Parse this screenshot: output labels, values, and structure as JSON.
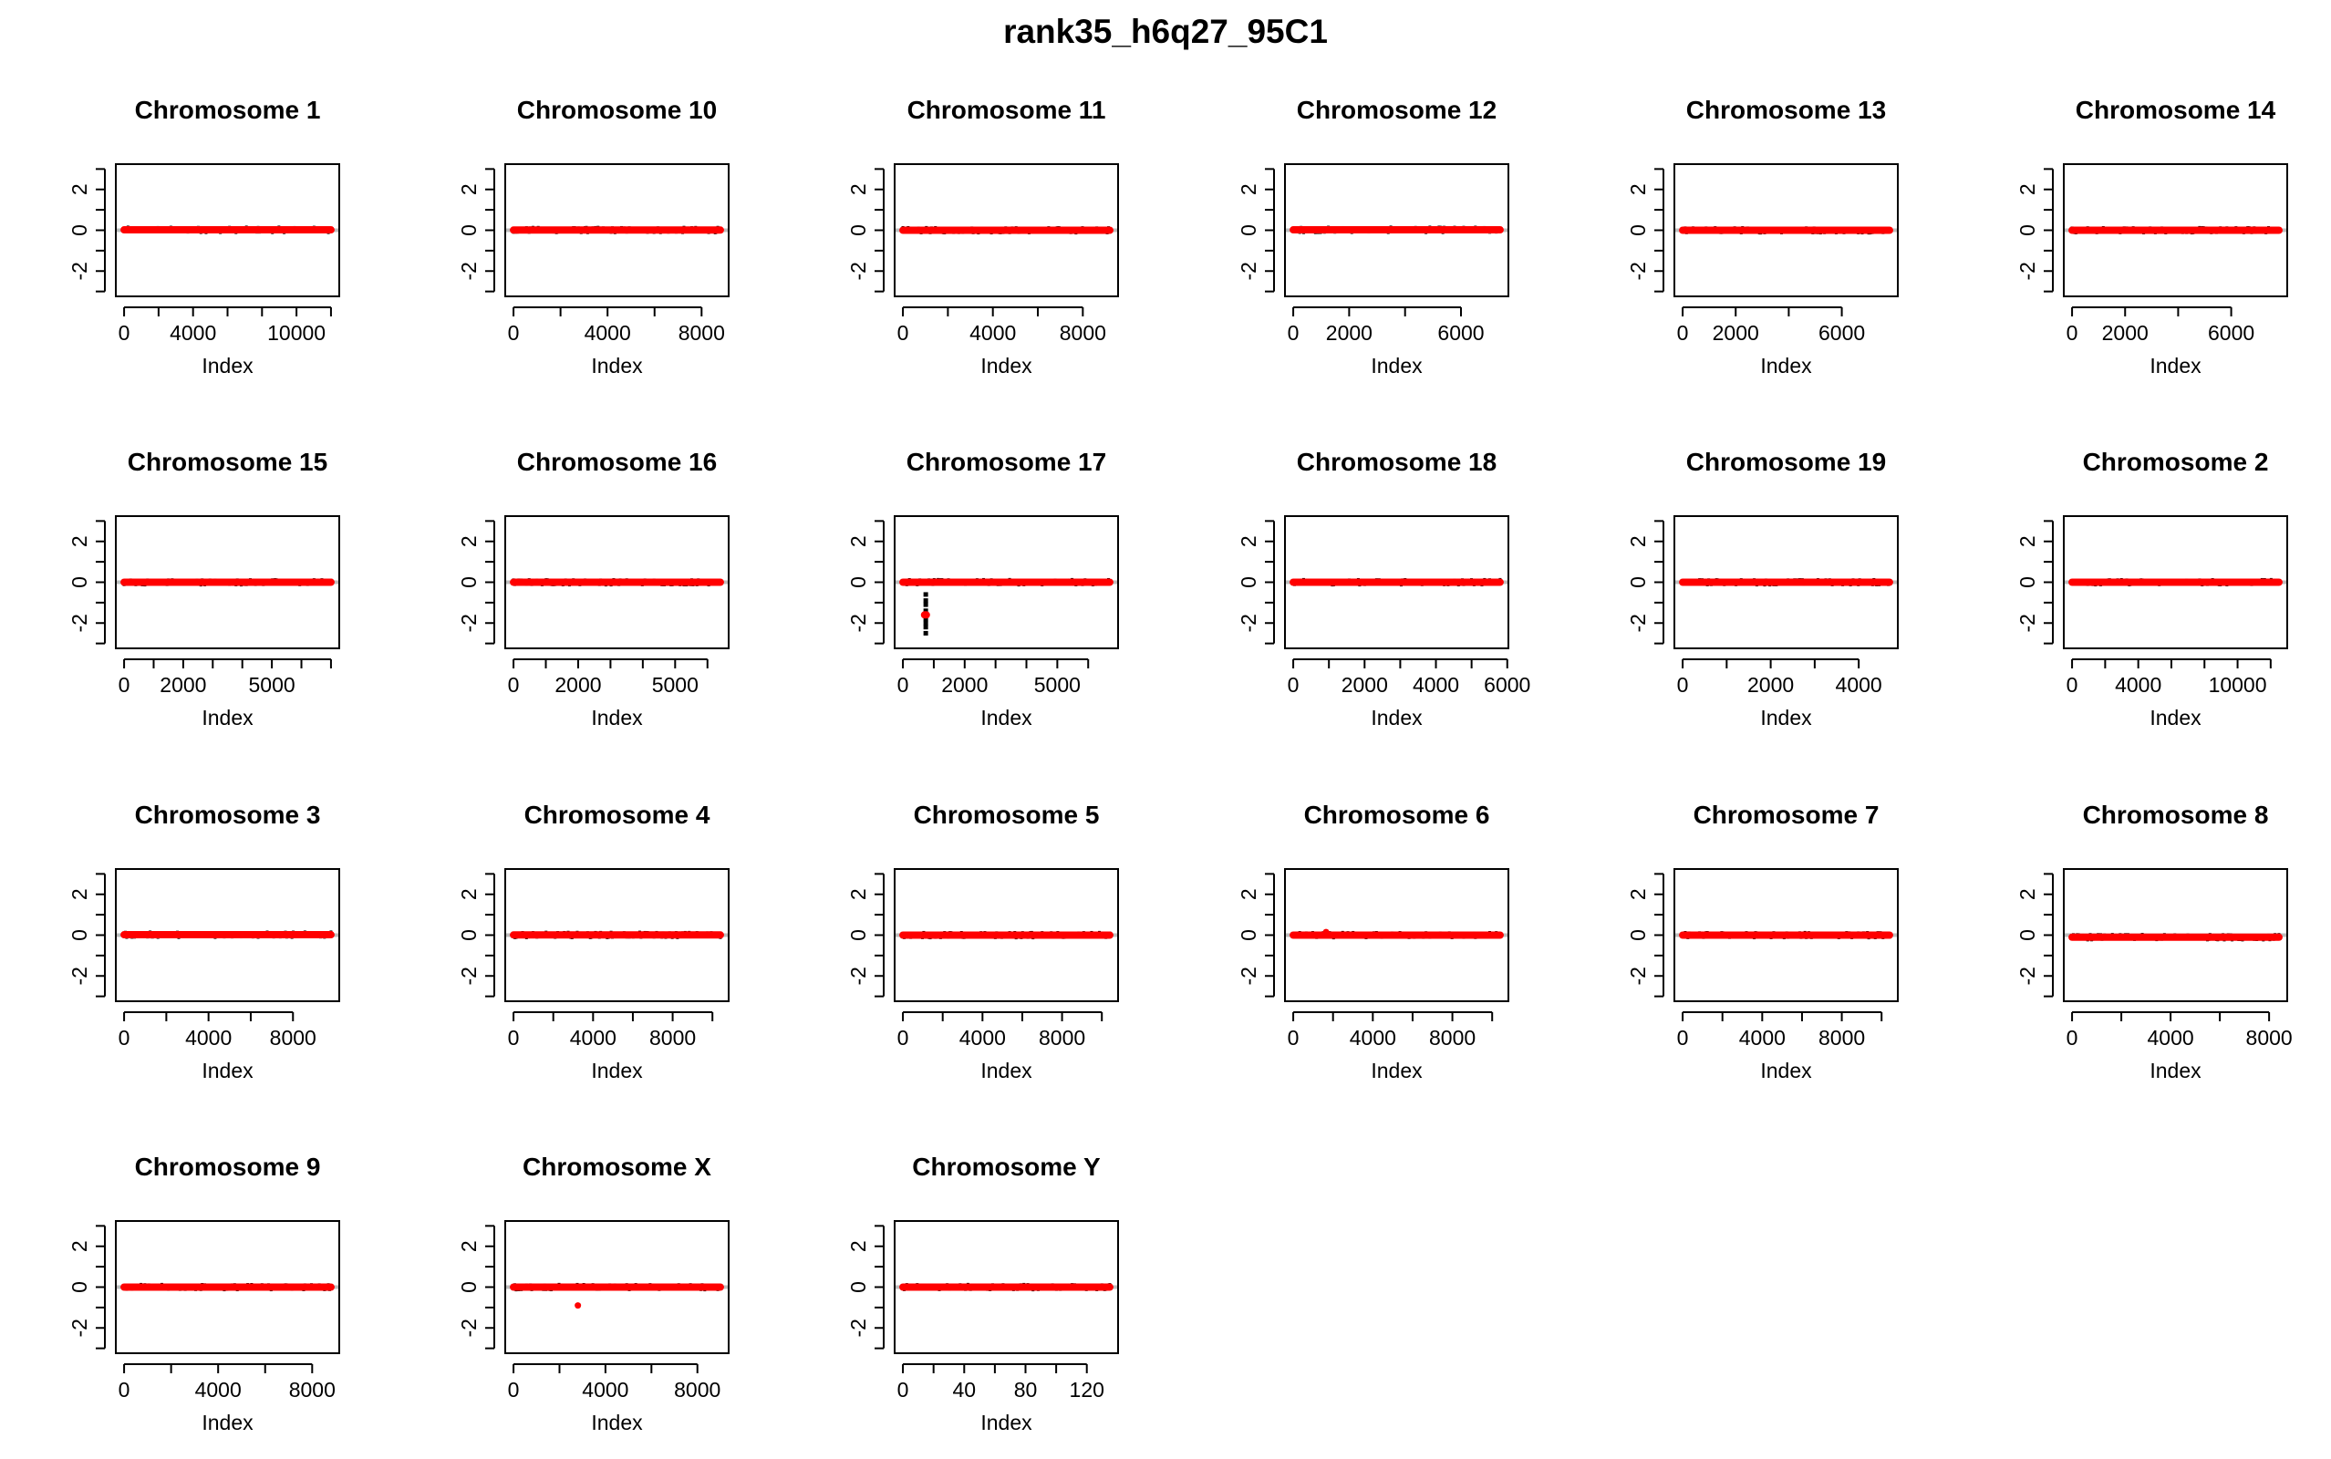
{
  "title": "rank35_h6q27_95C1",
  "colors": {
    "points": "#000000",
    "segments": "#ff0000",
    "baseline": "#bebebe",
    "frame": "#000000"
  },
  "chart_data": [
    {
      "type": "scatter",
      "title": "Chromosome 1",
      "xlabel": "Index",
      "ylabel": "",
      "xlim": [
        0,
        12000
      ],
      "ylim": [
        -3,
        3
      ],
      "xticks": [
        0,
        4000,
        10000
      ],
      "xminor": [
        2000,
        6000,
        8000,
        12000
      ],
      "yticks": [
        -2,
        0,
        2
      ],
      "yminor": [
        -3,
        -1,
        1,
        3
      ],
      "segments": [
        {
          "x": [
            0,
            12000
          ],
          "y": 0.02
        }
      ],
      "outliers": []
    },
    {
      "type": "scatter",
      "title": "Chromosome 10",
      "xlabel": "Index",
      "ylabel": "",
      "xlim": [
        0,
        8800
      ],
      "ylim": [
        -3,
        3
      ],
      "xticks": [
        0,
        4000,
        8000
      ],
      "xminor": [
        2000,
        6000
      ],
      "yticks": [
        -2,
        0,
        2
      ],
      "yminor": [
        -3,
        -1,
        1,
        3
      ],
      "segments": [
        {
          "x": [
            0,
            8800
          ],
          "y": 0.01
        }
      ],
      "outliers": []
    },
    {
      "type": "scatter",
      "title": "Chromosome 11",
      "xlabel": "Index",
      "ylabel": "",
      "xlim": [
        0,
        9200
      ],
      "ylim": [
        -3,
        3
      ],
      "xticks": [
        0,
        4000,
        8000
      ],
      "xminor": [
        2000,
        6000
      ],
      "yticks": [
        -2,
        0,
        2
      ],
      "yminor": [
        -3,
        -1,
        1,
        3
      ],
      "segments": [
        {
          "x": [
            0,
            9200
          ],
          "y": 0.0
        }
      ],
      "outliers": []
    },
    {
      "type": "scatter",
      "title": "Chromosome 12",
      "xlabel": "Index",
      "ylabel": "",
      "xlim": [
        0,
        7400
      ],
      "ylim": [
        -3,
        3
      ],
      "xticks": [
        0,
        2000,
        6000
      ],
      "xminor": [
        4000
      ],
      "yticks": [
        -2,
        0,
        2
      ],
      "yminor": [
        -3,
        -1,
        1,
        3
      ],
      "segments": [
        {
          "x": [
            0,
            7400
          ],
          "y": 0.02
        }
      ],
      "outliers": []
    },
    {
      "type": "scatter",
      "title": "Chromosome 13",
      "xlabel": "Index",
      "ylabel": "",
      "xlim": [
        0,
        7800
      ],
      "ylim": [
        -3,
        3
      ],
      "xticks": [
        0,
        2000,
        6000
      ],
      "xminor": [
        4000
      ],
      "yticks": [
        -2,
        0,
        2
      ],
      "yminor": [
        -3,
        -1,
        1,
        3
      ],
      "segments": [
        {
          "x": [
            0,
            7800
          ],
          "y": 0.0
        }
      ],
      "outliers": []
    },
    {
      "type": "scatter",
      "title": "Chromosome 14",
      "xlabel": "Index",
      "ylabel": "",
      "xlim": [
        0,
        7800
      ],
      "ylim": [
        -3,
        3
      ],
      "xticks": [
        0,
        2000,
        6000
      ],
      "xminor": [
        4000
      ],
      "yticks": [
        -2,
        0,
        2
      ],
      "yminor": [
        -3,
        -1,
        1,
        3
      ],
      "segments": [
        {
          "x": [
            0,
            7800
          ],
          "y": 0.0
        }
      ],
      "outliers": []
    },
    {
      "type": "scatter",
      "title": "Chromosome 15",
      "xlabel": "Index",
      "ylabel": "",
      "xlim": [
        0,
        7000
      ],
      "ylim": [
        -3,
        3
      ],
      "xticks": [
        0,
        2000,
        5000
      ],
      "xminor": [
        1000,
        3000,
        4000,
        6000,
        7000
      ],
      "yticks": [
        -2,
        0,
        2
      ],
      "yminor": [
        -3,
        -1,
        1,
        3
      ],
      "segments": [
        {
          "x": [
            0,
            7000
          ],
          "y": 0.0
        }
      ],
      "outliers": []
    },
    {
      "type": "scatter",
      "title": "Chromosome 16",
      "xlabel": "Index",
      "ylabel": "",
      "xlim": [
        0,
        6400
      ],
      "ylim": [
        -3,
        3
      ],
      "xticks": [
        0,
        2000,
        5000
      ],
      "xminor": [
        1000,
        3000,
        4000,
        6000
      ],
      "yticks": [
        -2,
        0,
        2
      ],
      "yminor": [
        -3,
        -1,
        1,
        3
      ],
      "segments": [
        {
          "x": [
            0,
            6400
          ],
          "y": 0.0
        }
      ],
      "outliers": []
    },
    {
      "type": "scatter",
      "title": "Chromosome 17",
      "xlabel": "Index",
      "ylabel": "",
      "xlim": [
        0,
        6700
      ],
      "ylim": [
        -3,
        3
      ],
      "xticks": [
        0,
        2000,
        5000
      ],
      "xminor": [
        1000,
        3000,
        4000,
        6000
      ],
      "yticks": [
        -2,
        0,
        2
      ],
      "yminor": [
        -3,
        -1,
        1,
        3
      ],
      "segments": [
        {
          "x": [
            0,
            6700
          ],
          "y": 0.0
        },
        {
          "x": [
            700,
            760
          ],
          "y": -1.6
        }
      ],
      "outliers": [
        {
          "x": 740,
          "y": -0.6
        },
        {
          "x": 740,
          "y": -0.9
        },
        {
          "x": 740,
          "y": -1.1
        },
        {
          "x": 740,
          "y": -1.4
        },
        {
          "x": 740,
          "y": -1.8
        },
        {
          "x": 740,
          "y": -2.0
        },
        {
          "x": 740,
          "y": -2.2
        },
        {
          "x": 740,
          "y": -2.5
        }
      ]
    },
    {
      "type": "scatter",
      "title": "Chromosome 18",
      "xlabel": "Index",
      "ylabel": "",
      "xlim": [
        0,
        5800
      ],
      "ylim": [
        -3,
        3
      ],
      "xticks": [
        0,
        2000,
        4000,
        6000
      ],
      "xminor": [
        1000,
        3000,
        5000
      ],
      "yticks": [
        -2,
        0,
        2
      ],
      "yminor": [
        -3,
        -1,
        1,
        3
      ],
      "segments": [
        {
          "x": [
            0,
            5800
          ],
          "y": 0.0
        }
      ],
      "outliers": []
    },
    {
      "type": "scatter",
      "title": "Chromosome 19",
      "xlabel": "Index",
      "ylabel": "",
      "xlim": [
        0,
        4700
      ],
      "ylim": [
        -3,
        3
      ],
      "xticks": [
        0,
        2000,
        4000
      ],
      "xminor": [
        1000,
        3000
      ],
      "yticks": [
        -2,
        0,
        2
      ],
      "yminor": [
        -3,
        -1,
        1,
        3
      ],
      "segments": [
        {
          "x": [
            0,
            4700
          ],
          "y": 0.0
        }
      ],
      "outliers": []
    },
    {
      "type": "scatter",
      "title": "Chromosome 2",
      "xlabel": "Index",
      "ylabel": "",
      "xlim": [
        0,
        12500
      ],
      "ylim": [
        -3,
        3
      ],
      "xticks": [
        0,
        4000,
        10000
      ],
      "xminor": [
        2000,
        6000,
        8000,
        12000
      ],
      "yticks": [
        -2,
        0,
        2
      ],
      "yminor": [
        -3,
        -1,
        1,
        3
      ],
      "segments": [
        {
          "x": [
            0,
            12500
          ],
          "y": 0.0
        }
      ],
      "outliers": []
    },
    {
      "type": "scatter",
      "title": "Chromosome 3",
      "xlabel": "Index",
      "ylabel": "",
      "xlim": [
        0,
        9800
      ],
      "ylim": [
        -3,
        3
      ],
      "xticks": [
        0,
        4000,
        8000
      ],
      "xminor": [
        2000,
        6000
      ],
      "yticks": [
        -2,
        0,
        2
      ],
      "yminor": [
        -3,
        -1,
        1,
        3
      ],
      "segments": [
        {
          "x": [
            0,
            9800
          ],
          "y": 0.02
        }
      ],
      "outliers": []
    },
    {
      "type": "scatter",
      "title": "Chromosome 4",
      "xlabel": "Index",
      "ylabel": "",
      "xlim": [
        0,
        10400
      ],
      "ylim": [
        -3,
        3
      ],
      "xticks": [
        0,
        4000,
        8000
      ],
      "xminor": [
        2000,
        6000,
        10000
      ],
      "yticks": [
        -2,
        0,
        2
      ],
      "yminor": [
        -3,
        -1,
        1,
        3
      ],
      "segments": [
        {
          "x": [
            0,
            10400
          ],
          "y": 0.01
        }
      ],
      "outliers": []
    },
    {
      "type": "scatter",
      "title": "Chromosome 5",
      "xlabel": "Index",
      "ylabel": "",
      "xlim": [
        0,
        10400
      ],
      "ylim": [
        -3,
        3
      ],
      "xticks": [
        0,
        4000,
        8000
      ],
      "xminor": [
        2000,
        6000,
        10000
      ],
      "yticks": [
        -2,
        0,
        2
      ],
      "yminor": [
        -3,
        -1,
        1,
        3
      ],
      "segments": [
        {
          "x": [
            0,
            10400
          ],
          "y": 0.0
        }
      ],
      "outliers": []
    },
    {
      "type": "scatter",
      "title": "Chromosome 6",
      "xlabel": "Index",
      "ylabel": "",
      "xlim": [
        0,
        10400
      ],
      "ylim": [
        -3,
        3
      ],
      "xticks": [
        0,
        4000,
        8000
      ],
      "xminor": [
        2000,
        6000,
        10000
      ],
      "yticks": [
        -2,
        0,
        2
      ],
      "yminor": [
        -3,
        -1,
        1,
        3
      ],
      "segments": [
        {
          "x": [
            0,
            10400
          ],
          "y": 0.0
        }
      ],
      "outliers": [
        {
          "x": 1650,
          "y": 0.15
        }
      ]
    },
    {
      "type": "scatter",
      "title": "Chromosome 7",
      "xlabel": "Index",
      "ylabel": "",
      "xlim": [
        0,
        10400
      ],
      "ylim": [
        -3,
        3
      ],
      "xticks": [
        0,
        4000,
        8000
      ],
      "xminor": [
        2000,
        6000,
        10000
      ],
      "yticks": [
        -2,
        0,
        2
      ],
      "yminor": [
        -3,
        -1,
        1,
        3
      ],
      "segments": [
        {
          "x": [
            0,
            10400
          ],
          "y": 0.0
        }
      ],
      "outliers": []
    },
    {
      "type": "scatter",
      "title": "Chromosome 8",
      "xlabel": "Index",
      "ylabel": "",
      "xlim": [
        0,
        8400
      ],
      "ylim": [
        -3,
        3
      ],
      "xticks": [
        0,
        4000,
        8000
      ],
      "xminor": [
        2000,
        6000
      ],
      "yticks": [
        -2,
        0,
        2
      ],
      "yminor": [
        -3,
        -1,
        1,
        3
      ],
      "segments": [
        {
          "x": [
            0,
            8400
          ],
          "y": -0.1
        }
      ],
      "outliers": []
    },
    {
      "type": "scatter",
      "title": "Chromosome 9",
      "xlabel": "Index",
      "ylabel": "",
      "xlim": [
        0,
        8800
      ],
      "ylim": [
        -3,
        3
      ],
      "xticks": [
        0,
        4000,
        8000
      ],
      "xminor": [
        2000,
        6000
      ],
      "yticks": [
        -2,
        0,
        2
      ],
      "yminor": [
        -3,
        -1,
        1,
        3
      ],
      "segments": [
        {
          "x": [
            0,
            8800
          ],
          "y": 0.0
        }
      ],
      "outliers": []
    },
    {
      "type": "scatter",
      "title": "Chromosome X",
      "xlabel": "Index",
      "ylabel": "",
      "xlim": [
        0,
        9000
      ],
      "ylim": [
        -3,
        3
      ],
      "xticks": [
        0,
        4000,
        8000
      ],
      "xminor": [
        2000,
        6000
      ],
      "yticks": [
        -2,
        0,
        2
      ],
      "yminor": [
        -3,
        -1,
        1,
        3
      ],
      "segments": [
        {
          "x": [
            0,
            9000
          ],
          "y": 0.0
        }
      ],
      "outliers": [
        {
          "x": 2800,
          "y": -0.9
        }
      ]
    },
    {
      "type": "scatter",
      "title": "Chromosome Y",
      "xlabel": "Index",
      "ylabel": "",
      "xlim": [
        0,
        135
      ],
      "ylim": [
        -3,
        3
      ],
      "xticks": [
        0,
        40,
        80,
        120
      ],
      "xminor": [
        20,
        60,
        100
      ],
      "yticks": [
        -2,
        0,
        2
      ],
      "yminor": [
        -3,
        -1,
        1,
        3
      ],
      "segments": [
        {
          "x": [
            0,
            135
          ],
          "y": 0.0
        }
      ],
      "outliers": []
    }
  ]
}
